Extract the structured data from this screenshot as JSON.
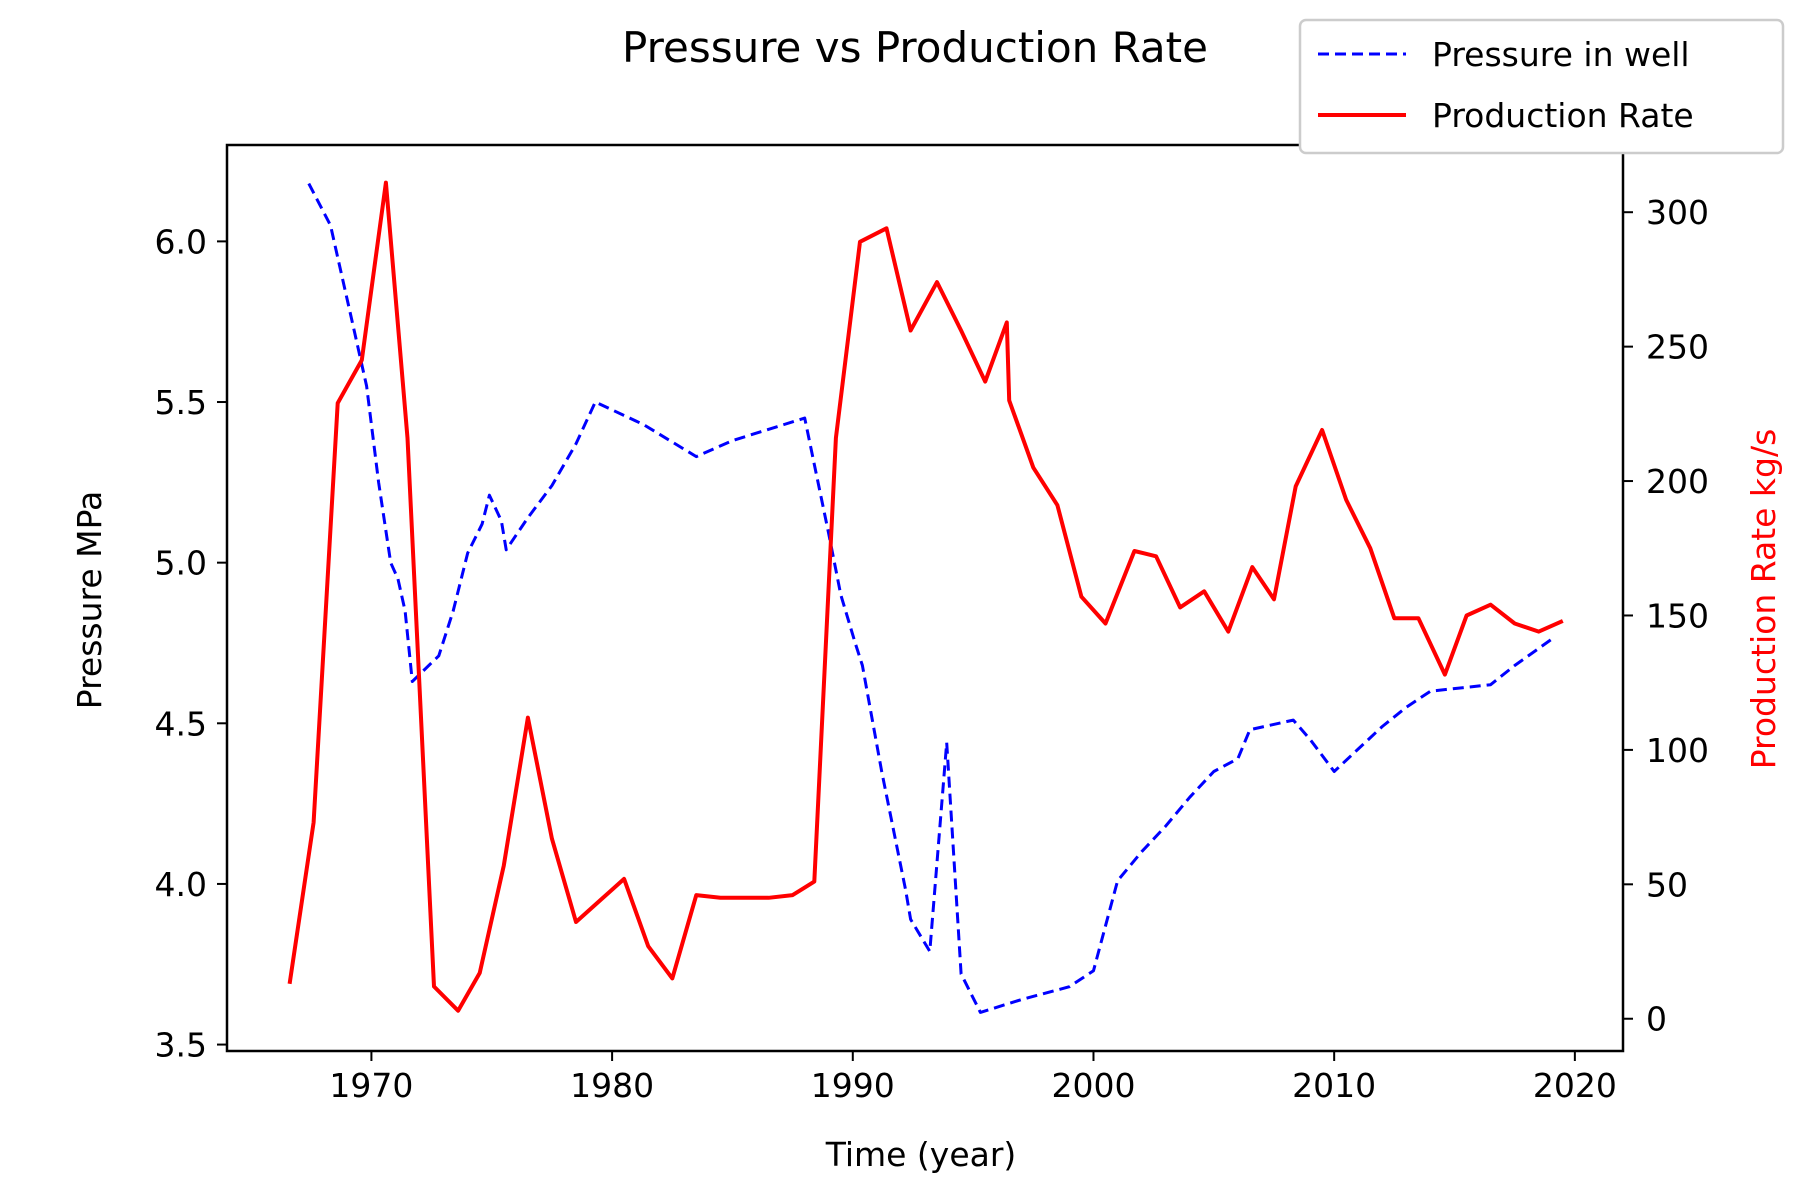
{
  "chart_data": {
    "type": "line",
    "title": "Pressure vs Production Rate",
    "xlabel": "Time (year)",
    "ylabel_left": "Pressure MPa",
    "ylabel_right": "Production Rate kg/s",
    "xlim": [
      1964,
      2022
    ],
    "ylim_left": [
      3.48,
      6.3
    ],
    "ylim_right": [
      -12,
      325
    ],
    "x_ticks": [
      1970,
      1980,
      1990,
      2000,
      2010,
      2020
    ],
    "y_left_ticks": [
      "3.5",
      "4.0",
      "4.5",
      "5.0",
      "5.5",
      "6.0"
    ],
    "y_right_ticks": [
      "0",
      "50",
      "100",
      "150",
      "200",
      "250",
      "300"
    ],
    "grid": false,
    "legend_position": "top-right",
    "series": [
      {
        "name": "Pressure in well",
        "axis": "left",
        "color": "#0000ff",
        "style": "dashed",
        "points": [
          [
            1967.4,
            6.18
          ],
          [
            1968.3,
            6.05
          ],
          [
            1968.6,
            5.95
          ],
          [
            1969.2,
            5.75
          ],
          [
            1969.8,
            5.55
          ],
          [
            1970.3,
            5.25
          ],
          [
            1970.8,
            5.0
          ],
          [
            1971.1,
            4.95
          ],
          [
            1971.4,
            4.85
          ],
          [
            1971.7,
            4.63
          ],
          [
            1972.8,
            4.71
          ],
          [
            1973.4,
            4.85
          ],
          [
            1974.0,
            5.03
          ],
          [
            1974.6,
            5.12
          ],
          [
            1974.9,
            5.21
          ],
          [
            1975.4,
            5.13
          ],
          [
            1975.6,
            5.04
          ],
          [
            1976.5,
            5.14
          ],
          [
            1977.5,
            5.24
          ],
          [
            1978.5,
            5.37
          ],
          [
            1979.3,
            5.5
          ],
          [
            1981.3,
            5.43
          ],
          [
            1983.5,
            5.33
          ],
          [
            1985.0,
            5.38
          ],
          [
            1988.0,
            5.45
          ],
          [
            1989.0,
            5.09
          ],
          [
            1989.5,
            4.9
          ],
          [
            1990.1,
            4.75
          ],
          [
            1990.4,
            4.68
          ],
          [
            1991.2,
            4.35
          ],
          [
            1992.2,
            3.98
          ],
          [
            1992.4,
            3.89
          ],
          [
            1993.2,
            3.79
          ],
          [
            1993.9,
            4.44
          ],
          [
            1994.5,
            3.72
          ],
          [
            1995.3,
            3.6
          ],
          [
            1997.0,
            3.64
          ],
          [
            1999.0,
            3.68
          ],
          [
            2000.0,
            3.73
          ],
          [
            2001.0,
            4.01
          ],
          [
            2002.0,
            4.1
          ],
          [
            2003.0,
            4.18
          ],
          [
            2004.0,
            4.27
          ],
          [
            2005.0,
            4.35
          ],
          [
            2006.0,
            4.39
          ],
          [
            2006.5,
            4.48
          ],
          [
            2008.3,
            4.51
          ],
          [
            2009.0,
            4.45
          ],
          [
            2010.0,
            4.35
          ],
          [
            2011.0,
            4.42
          ],
          [
            2012.0,
            4.49
          ],
          [
            2013.0,
            4.55
          ],
          [
            2014.0,
            4.6
          ],
          [
            2016.5,
            4.62
          ],
          [
            2017.5,
            4.68
          ],
          [
            2019.0,
            4.76
          ]
        ]
      },
      {
        "name": "Production Rate",
        "axis": "right",
        "color": "#ff0000",
        "style": "solid",
        "points": [
          [
            1966.6,
            13
          ],
          [
            1967.6,
            73
          ],
          [
            1968.6,
            229
          ],
          [
            1969.6,
            245
          ],
          [
            1970.6,
            311
          ],
          [
            1971.5,
            216
          ],
          [
            1972.6,
            12
          ],
          [
            1973.6,
            3
          ],
          [
            1974.5,
            17
          ],
          [
            1975.5,
            57
          ],
          [
            1976.5,
            112
          ],
          [
            1977.5,
            67
          ],
          [
            1978.5,
            36
          ],
          [
            1979.5,
            44
          ],
          [
            1980.5,
            52
          ],
          [
            1981.5,
            27
          ],
          [
            1982.5,
            15
          ],
          [
            1983.5,
            46
          ],
          [
            1984.5,
            45
          ],
          [
            1986.5,
            45
          ],
          [
            1987.5,
            46
          ],
          [
            1988.4,
            51
          ],
          [
            1989.3,
            216
          ],
          [
            1990.3,
            289
          ],
          [
            1991.4,
            294
          ],
          [
            1992.4,
            256
          ],
          [
            1993.5,
            274
          ],
          [
            1994.5,
            256
          ],
          [
            1995.5,
            237
          ],
          [
            1996.4,
            259
          ],
          [
            1996.5,
            230
          ],
          [
            1997.5,
            205
          ],
          [
            1998.5,
            191
          ],
          [
            1999.5,
            157
          ],
          [
            2000.5,
            147
          ],
          [
            2001.7,
            174
          ],
          [
            2002.6,
            172
          ],
          [
            2003.6,
            153
          ],
          [
            2004.6,
            159
          ],
          [
            2005.6,
            144
          ],
          [
            2006.6,
            168
          ],
          [
            2007.5,
            156
          ],
          [
            2008.4,
            198
          ],
          [
            2009.5,
            219
          ],
          [
            2010.5,
            193
          ],
          [
            2011.5,
            175
          ],
          [
            2012.5,
            149
          ],
          [
            2013.5,
            149
          ],
          [
            2014.6,
            128
          ],
          [
            2015.5,
            150
          ],
          [
            2016.5,
            154
          ],
          [
            2017.5,
            147
          ],
          [
            2018.5,
            144
          ],
          [
            2019.5,
            148
          ]
        ]
      }
    ]
  }
}
